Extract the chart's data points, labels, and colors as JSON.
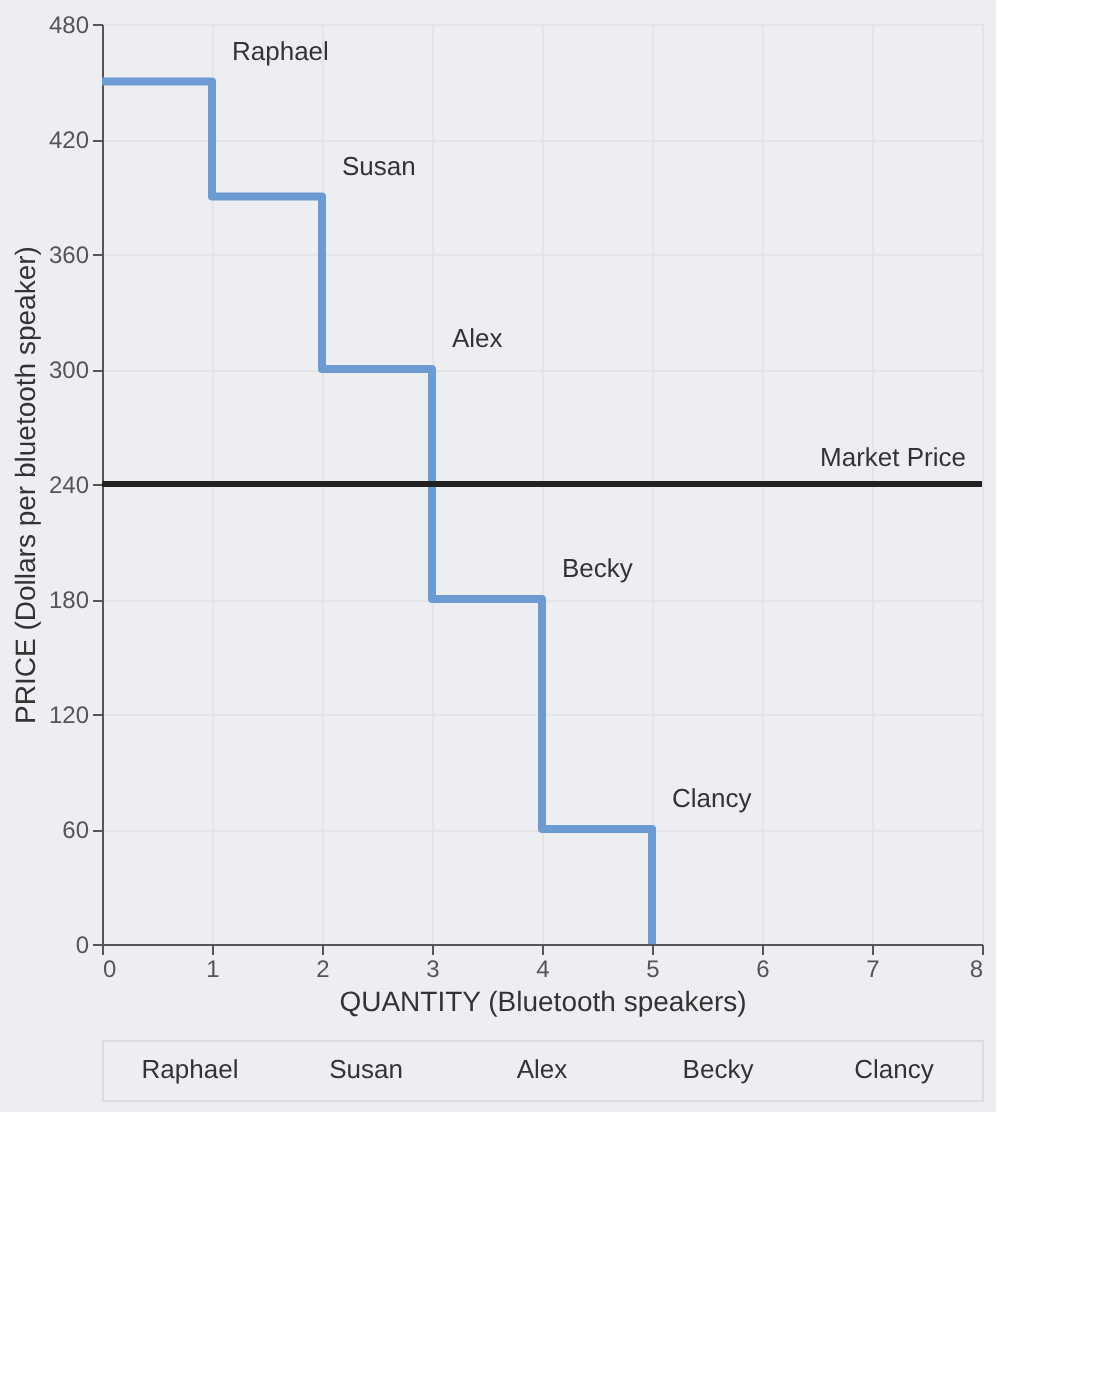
{
  "chart_data": {
    "type": "step",
    "xlabel": "QUANTITY (Bluetooth speakers)",
    "ylabel": "PRICE (Dollars per bluetooth speaker)",
    "x": [
      0,
      1,
      2,
      3,
      4,
      5
    ],
    "series": [
      {
        "color": "#6b9bd2",
        "values": [
          450,
          390,
          300,
          180,
          60,
          0
        ]
      }
    ],
    "xlim": [
      0,
      8
    ],
    "xticks": [
      0,
      1,
      2,
      3,
      4,
      5,
      6,
      7,
      8
    ],
    "ylim": [
      0,
      480
    ],
    "yticks": [
      0,
      60,
      120,
      180,
      240,
      300,
      360,
      420,
      480
    ],
    "grid": true,
    "ref_lines": [
      {
        "axis": "y",
        "value": 240,
        "label": "Market Price",
        "color": "#222222"
      }
    ],
    "annotations": [
      {
        "text": "Raphael",
        "x": 1,
        "y": 450
      },
      {
        "text": "Susan",
        "x": 2,
        "y": 390
      },
      {
        "text": "Alex",
        "x": 3,
        "y": 300
      },
      {
        "text": "Becky",
        "x": 4,
        "y": 180
      },
      {
        "text": "Clancy",
        "x": 5,
        "y": 60
      },
      "Raphael",
      "Susan",
      "Alex",
      "Becky",
      "Clancy"
    ]
  }
}
